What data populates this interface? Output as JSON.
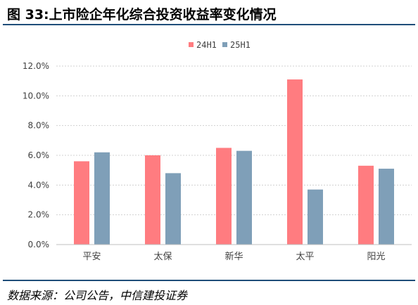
{
  "figure": {
    "title": "图 33:上市险企年化综合投资收益率变化情况",
    "source": "数据来源：公司公告，中信建投证券"
  },
  "chart_data": {
    "type": "bar",
    "categories": [
      "平安",
      "太保",
      "新华",
      "太平",
      "阳光"
    ],
    "series": [
      {
        "name": "24H1",
        "values": [
          5.6,
          6.0,
          6.5,
          11.1,
          5.3
        ],
        "color": "#ff7c80"
      },
      {
        "name": "25H1",
        "values": [
          6.2,
          4.8,
          6.3,
          3.7,
          5.1
        ],
        "color": "#7f9fb8"
      }
    ],
    "ylim": [
      0,
      12
    ],
    "ytick_step": 2,
    "ytick_format": "percent_1dp",
    "grid": "horizontal-dotted",
    "legend_position": "top-center"
  }
}
